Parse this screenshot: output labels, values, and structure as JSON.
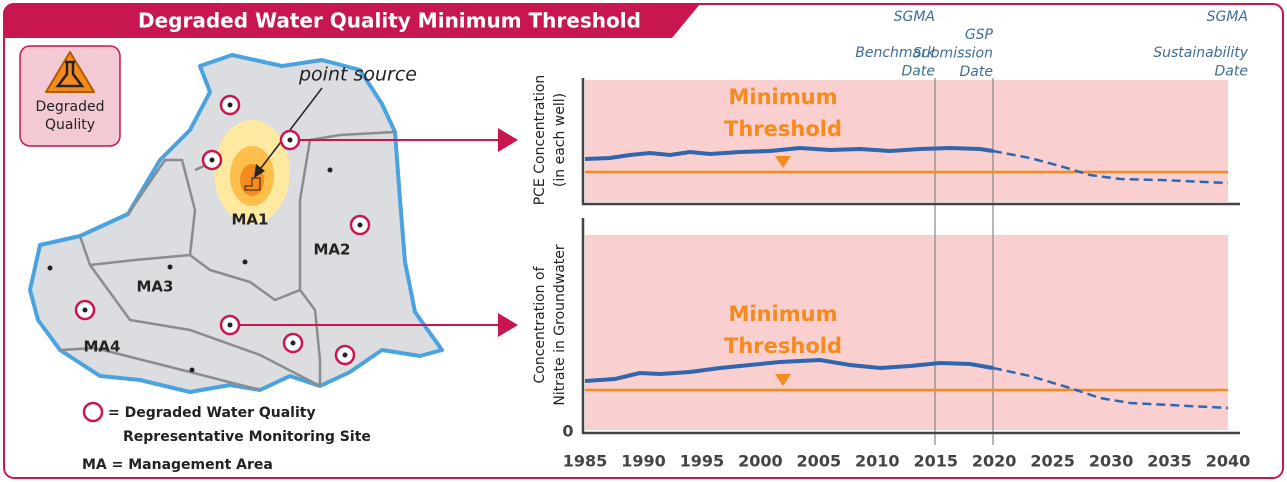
{
  "header": {
    "title": "Degraded Water Quality Minimum Threshold"
  },
  "icon": {
    "label": [
      "Degraded",
      "Quality"
    ]
  },
  "map": {
    "annotation": "point source",
    "areas": [
      "MA1",
      "MA2",
      "MA3",
      "MA4"
    ]
  },
  "legend": {
    "site": [
      "= Degraded Water Quality",
      "Representative Monitoring Site"
    ],
    "ma": "MA = Management Area"
  },
  "dates": [
    [
      "SGMA",
      "Benchmark",
      "Date"
    ],
    [
      "GSP",
      "Submission",
      "Date"
    ],
    [
      "SGMA",
      "Sustainability",
      "Date"
    ]
  ],
  "charts": [
    {
      "ylabel": [
        "PCE Concentration",
        "(in each well)"
      ],
      "threshold": [
        "Minimum",
        "Threshold"
      ]
    },
    {
      "ylabel": [
        "Concentration of",
        "Nitrate in Groundwater"
      ],
      "threshold": [
        "Minimum",
        "Threshold"
      ],
      "origin": "0"
    }
  ],
  "xticks": [
    "1985",
    "1990",
    "1995",
    "2000",
    "2005",
    "2010",
    "2015",
    "2020",
    "2025",
    "2030",
    "2035",
    "2040"
  ]
}
